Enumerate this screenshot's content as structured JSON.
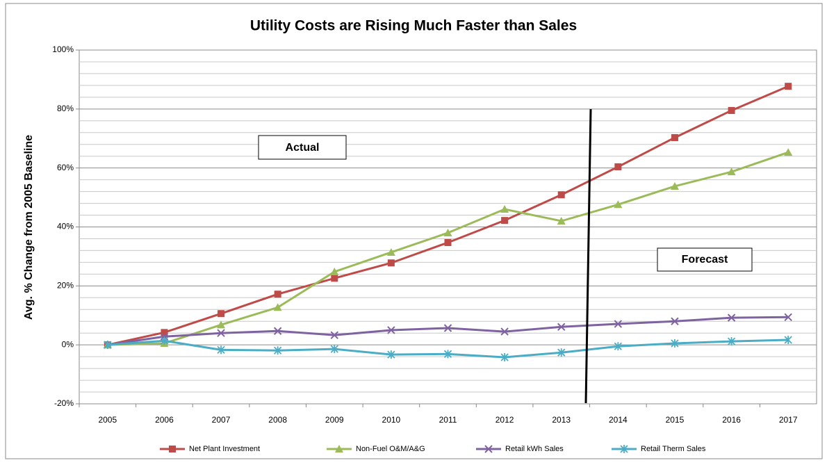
{
  "chart_data": {
    "type": "line",
    "title": "Utility Costs are Rising Much Faster than Sales",
    "y_label": "Avg. % Change from 2005 Baseline",
    "annotations": [
      "Actual",
      "Forecast"
    ],
    "categories": [
      "2005",
      "2006",
      "2007",
      "2008",
      "2009",
      "2010",
      "2011",
      "2012",
      "2013",
      "2014",
      "2015",
      "2016",
      "2017"
    ],
    "series": [
      {
        "name": "Net Plant Investment",
        "color": "#be4b48",
        "marker": "square",
        "values": [
          0,
          4.2,
          10.6,
          17.2,
          22.6,
          27.8,
          34.7,
          42.2,
          50.9,
          60.4,
          70.3,
          79.5,
          87.7
        ]
      },
      {
        "name": "Non-Fuel O&M/A&G",
        "color": "#9bbb59",
        "marker": "triangle",
        "values": [
          0,
          0.5,
          6.8,
          12.7,
          24.8,
          31.4,
          38,
          46,
          42,
          47.6,
          53.8,
          58.7,
          65.3
        ]
      },
      {
        "name": "Retail kWh Sales",
        "color": "#7f63a1",
        "marker": "x",
        "values": [
          0,
          2.8,
          4,
          4.7,
          3.3,
          5,
          5.7,
          4.5,
          6.1,
          7.1,
          8,
          9.2,
          9.4
        ]
      },
      {
        "name": "Retail Therm Sales",
        "color": "#4bacc6",
        "marker": "star",
        "values": [
          0,
          1.4,
          -1.7,
          -1.9,
          -1.4,
          -3.3,
          -3.1,
          -4.2,
          -2.6,
          -0.5,
          0.5,
          1.2,
          1.7
        ]
      }
    ],
    "ylim": [
      -20,
      100
    ],
    "yticks": [
      {
        "value": -20,
        "label": "-20%"
      },
      {
        "value": 0,
        "label": "0%"
      },
      {
        "value": 20,
        "label": "20%"
      },
      {
        "value": 40,
        "label": "40%"
      },
      {
        "value": 60,
        "label": "60%"
      },
      {
        "value": 80,
        "label": "80%"
      },
      {
        "value": 100,
        "label": "100%"
      }
    ],
    "minor_yticks": [
      -16,
      -12,
      -8,
      -4,
      4,
      8,
      12,
      16,
      24,
      28,
      32,
      36,
      44,
      48,
      52,
      56,
      64,
      68,
      72,
      76,
      84,
      88,
      92,
      96
    ],
    "grid": true,
    "legend": "bottom"
  }
}
